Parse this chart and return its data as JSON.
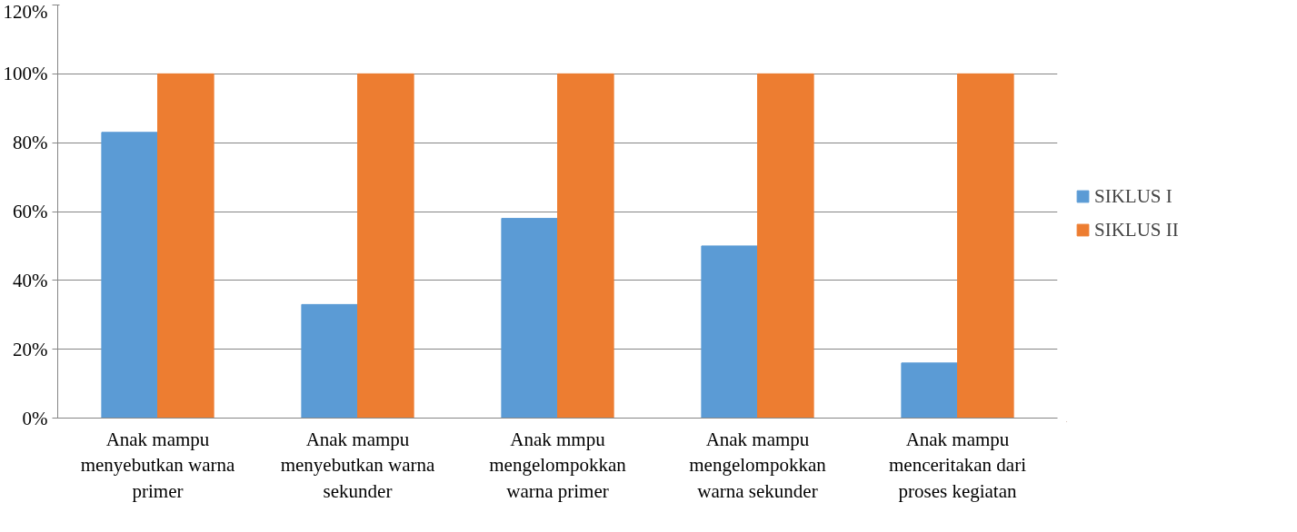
{
  "chart_data": {
    "type": "bar",
    "categories": [
      "Anak mampu menyebutkan warna primer",
      "Anak mampu menyebutkan warna sekunder",
      "Anak mmpu mengelompokkan warna primer",
      "Anak mampu mengelompokkan warna sekunder",
      "Anak mampu menceritakan dari proses kegiatan"
    ],
    "series": [
      {
        "name": "SIKLUS I",
        "color": "#5b9bd5",
        "values": [
          83,
          33,
          58,
          50,
          16
        ]
      },
      {
        "name": "SIKLUS II",
        "color": "#ed7d31",
        "values": [
          100,
          100,
          100,
          100,
          100
        ]
      }
    ],
    "ylim": [
      0,
      120
    ],
    "yticks": [
      {
        "value": 0,
        "label": "0%"
      },
      {
        "value": 20,
        "label": "20%"
      },
      {
        "value": 40,
        "label": "40%"
      },
      {
        "value": 60,
        "label": "60%"
      },
      {
        "value": 80,
        "label": "80%"
      },
      {
        "value": 100,
        "label": "100%"
      },
      {
        "value": 120,
        "label": "120%"
      }
    ],
    "grid": "y",
    "legend": "right"
  }
}
